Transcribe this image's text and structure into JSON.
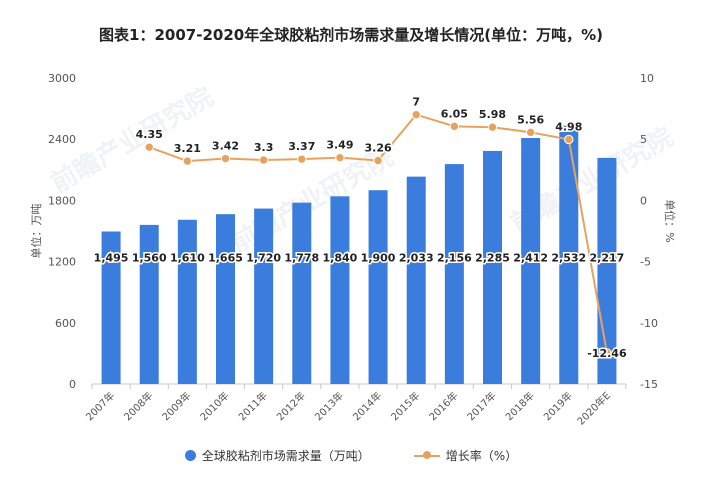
{
  "title": "图表1：2007-2020年全球胶粘剂市场需求量及增长情况(单位：万吨，%)",
  "watermarks": [
    "前瞻产业研究院",
    "前瞻产业研究院",
    "前瞻产业研究院"
  ],
  "chart_data": {
    "type": "bar+line",
    "categories": [
      "2007年",
      "2008年",
      "2009年",
      "2010年",
      "2011年",
      "2012年",
      "2013年",
      "2014年",
      "2015年",
      "2016年",
      "2017年",
      "2018年",
      "2019年",
      "2020年E"
    ],
    "series": [
      {
        "name": "全球胶粘剂市场需求量（万吨）",
        "type": "bar",
        "axis": "left",
        "color": "#3b7ddd",
        "values": [
          1495,
          1560,
          1610,
          1665,
          1720,
          1778,
          1840,
          1900,
          2033,
          2156,
          2285,
          2412,
          2532,
          2217
        ],
        "labels": [
          "1,495",
          "1,560",
          "1,610",
          "1,665",
          "1,720",
          "1,778",
          "1,840",
          "1,900",
          "2,033",
          "2,156",
          "2,285",
          "2,412",
          "2,532",
          "2,217"
        ]
      },
      {
        "name": "增长率（%）",
        "type": "line",
        "axis": "right",
        "color": "#e8a25f",
        "values": [
          null,
          4.35,
          3.21,
          3.42,
          3.3,
          3.37,
          3.49,
          3.26,
          7,
          6.05,
          5.98,
          5.56,
          4.98,
          -12.46
        ],
        "labels": [
          "",
          "4.35",
          "3.21",
          "3.42",
          "3.3",
          "3.37",
          "3.49",
          "3.26",
          "7",
          "6.05",
          "5.98",
          "5.56",
          "4.98",
          "-12.46"
        ]
      }
    ],
    "y_left": {
      "label": "单位：万吨",
      "min": 0,
      "max": 3000,
      "ticks": [
        0,
        600,
        1200,
        1800,
        2400,
        3000
      ]
    },
    "y_right": {
      "label": "单位：%",
      "min": -15,
      "max": 10,
      "ticks": [
        -15,
        -10,
        -5,
        0,
        5,
        10
      ]
    },
    "legend": "bottom-center",
    "grid": false
  }
}
